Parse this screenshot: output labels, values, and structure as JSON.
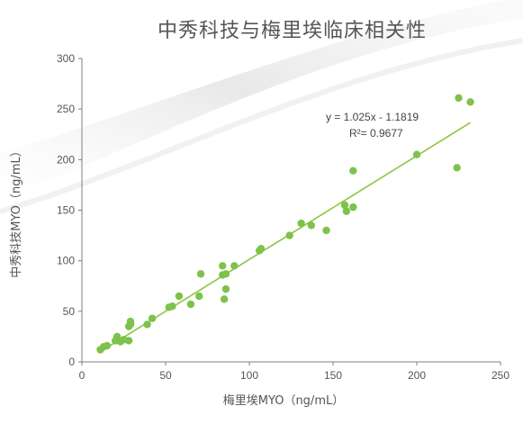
{
  "chart_data": {
    "type": "scatter",
    "title": "中秀科技与梅里埃临床相关性",
    "xlabel": "梅里埃MYO（ng/mL）",
    "ylabel": "中秀科技MYO（ng/mL）",
    "xlim": [
      0,
      250
    ],
    "ylim": [
      0,
      300
    ],
    "xticks": [
      "0",
      "50",
      "100",
      "150",
      "200",
      "250"
    ],
    "yticks": [
      "0",
      "50",
      "100",
      "150",
      "200",
      "250",
      "300"
    ],
    "grid": false,
    "legend": "none",
    "equation": "y = 1.025x - 1.1819",
    "r2": "R²= 0.9677",
    "trendline": {
      "slope": 1.025,
      "intercept": -1.1819,
      "x_range": [
        10,
        232
      ]
    },
    "series": [
      {
        "color": "#7dc24b",
        "points": [
          [
            11,
            12
          ],
          [
            13,
            15
          ],
          [
            15,
            16
          ],
          [
            20,
            21
          ],
          [
            21,
            25
          ],
          [
            23,
            20
          ],
          [
            25,
            22
          ],
          [
            28,
            21
          ],
          [
            28,
            35
          ],
          [
            29,
            37
          ],
          [
            29,
            38
          ],
          [
            29,
            40
          ],
          [
            39,
            37
          ],
          [
            42,
            43
          ],
          [
            52,
            54
          ],
          [
            54,
            55
          ],
          [
            58,
            65
          ],
          [
            65,
            57
          ],
          [
            70,
            65
          ],
          [
            71,
            87
          ],
          [
            84,
            95
          ],
          [
            84,
            86
          ],
          [
            85,
            62
          ],
          [
            86,
            72
          ],
          [
            86,
            87
          ],
          [
            91,
            95
          ],
          [
            106,
            110
          ],
          [
            107,
            112
          ],
          [
            124,
            125
          ],
          [
            131,
            137
          ],
          [
            137,
            135
          ],
          [
            146,
            130
          ],
          [
            157,
            155
          ],
          [
            158,
            149
          ],
          [
            162,
            153
          ],
          [
            162,
            189
          ],
          [
            200,
            205
          ],
          [
            224,
            192
          ],
          [
            225,
            261
          ],
          [
            232,
            257
          ]
        ]
      }
    ]
  },
  "colors": {
    "point": "#7dc24b",
    "trendline": "#8cc63f",
    "axis": "#7f7f7f",
    "text": "#555555"
  }
}
